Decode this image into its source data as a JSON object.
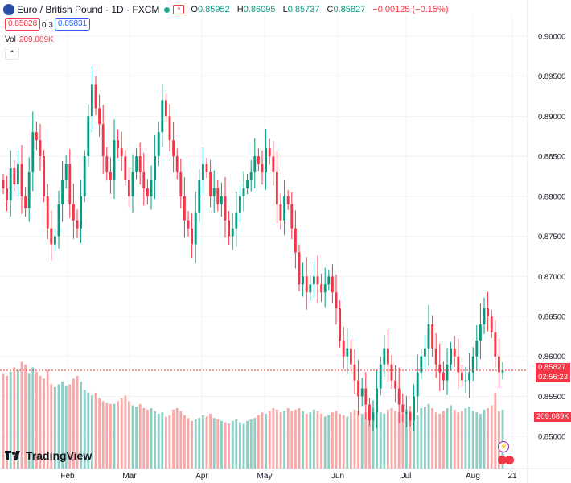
{
  "header": {
    "title": "Euro / British Pound · 1D · FXCM",
    "ohlc": {
      "o_label": "O",
      "o": "0.85952",
      "h_label": "H",
      "h": "0.86095",
      "l_label": "L",
      "l": "0.85737",
      "c_label": "C",
      "c": "0.85827",
      "change": "−0.00125 (−0.15%)"
    },
    "sell_price": "0.85828",
    "spread": "0.3",
    "buy_price": "0.85831",
    "vol_label": "Vol",
    "vol_value": "209.089K"
  },
  "price_axis": {
    "ticks": [
      "0.90000",
      "0.89500",
      "0.89000",
      "0.88500",
      "0.88000",
      "0.87500",
      "0.87000",
      "0.86500",
      "0.86000",
      "0.85500",
      "0.85000"
    ],
    "last_price": "0.85827",
    "countdown": "02:56:23",
    "volume_badge": "209.089K"
  },
  "time_axis": {
    "labels": [
      "Feb",
      "Mar",
      "Apr",
      "May",
      "Jun",
      "Jul",
      "Aug",
      "21"
    ]
  },
  "logo": {
    "text": "TradingView"
  },
  "colors": {
    "up": "#089981",
    "down": "#F23645",
    "up_vol": "#8fcec4",
    "down_vol": "#f7a9a7"
  },
  "chart_data": {
    "type": "candlestick",
    "symbol": "EURGBP",
    "interval": "1D",
    "ylim": [
      0.846,
      0.9025
    ],
    "last_close": 0.85827,
    "closes": [
      0.881,
      0.8795,
      0.8835,
      0.8815,
      0.884,
      0.88,
      0.8785,
      0.883,
      0.888,
      0.887,
      0.885,
      0.88,
      0.876,
      0.874,
      0.875,
      0.879,
      0.882,
      0.884,
      0.879,
      0.877,
      0.876,
      0.88,
      0.885,
      0.89,
      0.894,
      0.891,
      0.889,
      0.885,
      0.883,
      0.882,
      0.887,
      0.886,
      0.885,
      0.882,
      0.88,
      0.883,
      0.885,
      0.883,
      0.881,
      0.88,
      0.882,
      0.885,
      0.888,
      0.892,
      0.89,
      0.887,
      0.885,
      0.883,
      0.88,
      0.877,
      0.876,
      0.874,
      0.878,
      0.882,
      0.884,
      0.883,
      0.88,
      0.881,
      0.879,
      0.88,
      0.877,
      0.875,
      0.876,
      0.878,
      0.88,
      0.881,
      0.882,
      0.883,
      0.885,
      0.884,
      0.883,
      0.886,
      0.885,
      0.883,
      0.879,
      0.877,
      0.88,
      0.879,
      0.876,
      0.873,
      0.869,
      0.87,
      0.868,
      0.869,
      0.87,
      0.869,
      0.868,
      0.869,
      0.87,
      0.868,
      0.866,
      0.862,
      0.86,
      0.861,
      0.859,
      0.857,
      0.855,
      0.856,
      0.854,
      0.852,
      0.853,
      0.856,
      0.859,
      0.861,
      0.859,
      0.857,
      0.856,
      0.854,
      0.853,
      0.853,
      0.852,
      0.855,
      0.858,
      0.86,
      0.861,
      0.864,
      0.861,
      0.859,
      0.858,
      0.857,
      0.859,
      0.861,
      0.86,
      0.858,
      0.857,
      0.857,
      0.858,
      0.86,
      0.862,
      0.864,
      0.866,
      0.865,
      0.863,
      0.86,
      0.858,
      0.8583
    ],
    "volume_k": [
      340,
      330,
      345,
      360,
      350,
      380,
      370,
      340,
      360,
      345,
      330,
      320,
      350,
      300,
      290,
      300,
      310,
      295,
      300,
      320,
      330,
      310,
      280,
      270,
      260,
      270,
      250,
      240,
      235,
      230,
      230,
      240,
      250,
      260,
      240,
      225,
      220,
      230,
      215,
      210,
      215,
      205,
      195,
      200,
      185,
      190,
      210,
      215,
      205,
      190,
      180,
      170,
      175,
      180,
      190,
      185,
      195,
      180,
      175,
      170,
      165,
      160,
      170,
      175,
      165,
      160,
      170,
      175,
      180,
      190,
      200,
      195,
      205,
      215,
      210,
      200,
      205,
      215,
      205,
      210,
      215,
      205,
      195,
      200,
      210,
      205,
      195,
      185,
      190,
      200,
      205,
      195,
      190,
      185,
      200,
      210,
      205,
      195,
      200,
      210,
      215,
      205,
      200,
      195,
      210,
      215,
      205,
      200,
      195,
      210,
      205,
      200,
      190,
      215,
      220,
      230,
      215,
      200,
      195,
      205,
      215,
      225,
      210,
      200,
      205,
      215,
      220,
      205,
      200,
      195,
      210,
      215,
      225,
      270,
      205,
      209.089
    ]
  }
}
